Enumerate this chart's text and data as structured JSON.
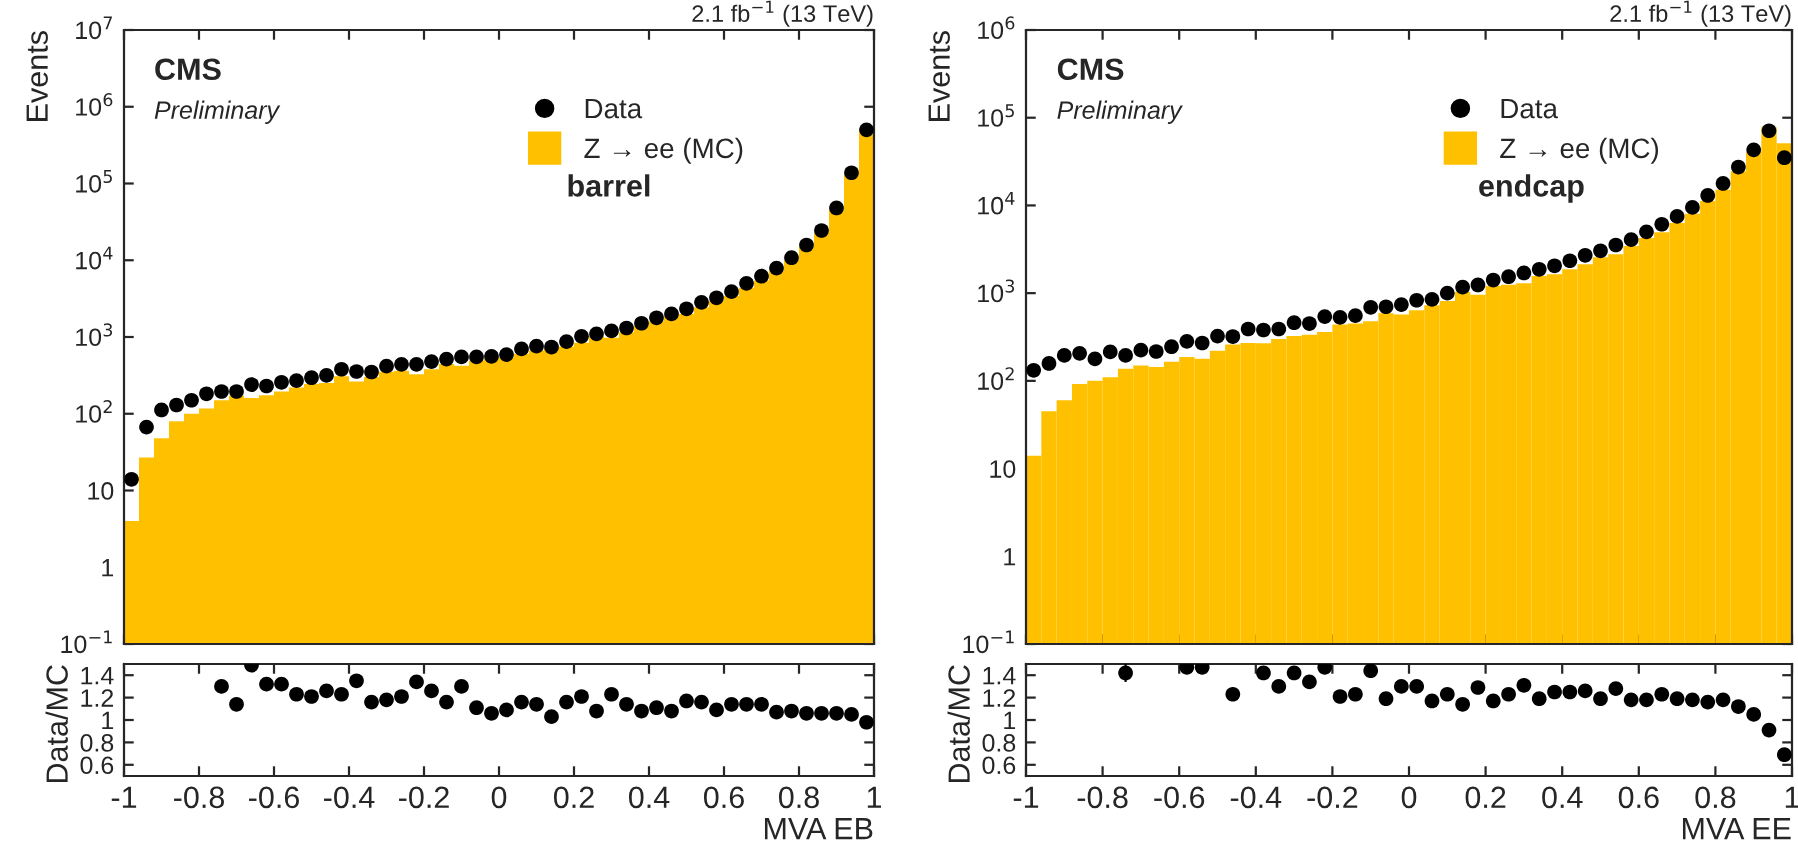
{
  "chart_data": [
    {
      "type": "histogram",
      "ylabel": "Events",
      "log": true,
      "legend": "top right",
      "tick_labels": "y",
      "annotations": [
        "CMS",
        "Preliminary",
        "barrel",
        "2.1 fb$^{−1}$ (13 TeV)"
      ],
      "xlim": [
        -1,
        1
      ],
      "xticks": [
        {
          "value": -1,
          "label": null
        },
        {
          "value": -0.8,
          "label": null
        },
        {
          "value": -0.6,
          "label": null
        },
        {
          "value": -0.4,
          "label": null
        },
        {
          "value": -0.2,
          "label": null
        },
        {
          "value": 0,
          "label": null
        },
        {
          "value": 0.2,
          "label": null
        },
        {
          "value": 0.4,
          "label": null
        },
        {
          "value": 0.6,
          "label": null
        },
        {
          "value": 0.8,
          "label": null
        },
        {
          "value": 1,
          "label": null
        }
      ],
      "ylim": [
        0.1,
        10000000
      ],
      "yticks": [
        {
          "value": 0.1,
          "label": "10$^{−1}$"
        },
        1,
        10,
        {
          "value": 100,
          "label": "10$^{2}$"
        },
        {
          "value": 1000,
          "label": "10$^{3}$"
        },
        {
          "value": 10000,
          "label": "10$^{4}$"
        },
        {
          "value": 100000,
          "label": "10$^{5}$"
        },
        {
          "value": 1000000,
          "label": "10$^{6}$"
        },
        {
          "value": 10000000,
          "label": "10$^{7}$"
        }
      ],
      "bins": [
        -1,
        -0.96,
        -0.92,
        -0.88,
        -0.84,
        -0.8,
        -0.76,
        -0.72,
        -0.68,
        -0.64,
        -0.6,
        -0.56,
        -0.52,
        -0.48,
        -0.44,
        -0.4,
        -0.36,
        -0.32,
        -0.28,
        -0.24,
        -0.2,
        -0.16,
        -0.12,
        -0.08,
        -0.04,
        0,
        0.04,
        0.08,
        0.12,
        0.16,
        0.2,
        0.24,
        0.28,
        0.32,
        0.36,
        0.4,
        0.44,
        0.48,
        0.52,
        0.56,
        0.6,
        0.64,
        0.68,
        0.72,
        0.76,
        0.8,
        0.84,
        0.88,
        0.92,
        0.96,
        1
      ],
      "series": [
        {
          "name": "Z → ee (MC)",
          "type": "histogram",
          "color": "#ffc000",
          "values": [
            4,
            27,
            48,
            80,
            100,
            117,
            150,
            171,
            161,
            174,
            195,
            220,
            244,
            251,
            309,
            263,
            302,
            353,
            364,
            328,
            379,
            444,
            423,
            495,
            528,
            541,
            603,
            667,
            718,
            750,
            843,
            1020,
            976,
            1150,
            1400,
            1600,
            1850,
            1990,
            2440,
            2970,
            3420,
            4390,
            5440,
            7380,
            10000,
            14900,
            23000,
            45300,
            131000,
            510000
          ]
        },
        {
          "name": "Data",
          "type": "scatter",
          "color": "#000000",
          "marker": "circle",
          "x": [
            -0.98,
            -0.94,
            -0.9,
            -0.86,
            -0.82,
            -0.78,
            -0.74,
            -0.7,
            -0.66,
            -0.62,
            -0.58,
            -0.54,
            -0.5,
            -0.46,
            -0.42,
            -0.38,
            -0.34,
            -0.3,
            -0.26,
            -0.22,
            -0.18,
            -0.14,
            -0.1,
            -0.06,
            -0.02,
            0.02,
            0.06,
            0.1,
            0.14,
            0.18,
            0.22,
            0.26,
            0.3,
            0.34,
            0.38,
            0.42,
            0.46,
            0.5,
            0.54,
            0.58,
            0.62,
            0.66,
            0.7,
            0.74,
            0.78,
            0.82,
            0.86,
            0.9,
            0.94,
            0.98
          ],
          "values": [
            14,
            67,
            112,
            130,
            150,
            182,
            195,
            195,
            240,
            230,
            257,
            270,
            295,
            316,
            380,
            355,
            350,
            417,
            440,
            440,
            478,
            515,
            550,
            550,
            560,
            590,
            700,
            760,
            740,
            870,
            1020,
            1100,
            1200,
            1310,
            1510,
            1780,
            2000,
            2330,
            2830,
            3240,
            3900,
            5000,
            6200,
            7900,
            10800,
            15800,
            24400,
            48000,
            138000,
            500000
          ]
        }
      ]
    },
    {
      "type": "scatter",
      "color": "#000000",
      "marker": "circle",
      "xlabel": "MVA EB",
      "ylabel": "Data/MC",
      "xlim": [
        -1,
        1
      ],
      "xticks": [
        -1,
        -0.8,
        -0.6,
        -0.4,
        -0.2,
        0,
        0.2,
        0.4,
        0.6,
        0.8,
        1
      ],
      "ylim": [
        0.5,
        1.5
      ],
      "yticks": [
        0.6,
        0.8,
        1,
        1.2,
        1.4
      ],
      "x": [
        -0.74,
        -0.7,
        -0.66,
        -0.62,
        -0.58,
        -0.54,
        -0.5,
        -0.46,
        -0.42,
        -0.38,
        -0.34,
        -0.3,
        -0.26,
        -0.22,
        -0.18,
        -0.14,
        -0.1,
        -0.06,
        -0.02,
        0.02,
        0.06,
        0.1,
        0.14,
        0.18,
        0.22,
        0.26,
        0.3,
        0.34,
        0.38,
        0.42,
        0.46,
        0.5,
        0.54,
        0.58,
        0.62,
        0.66,
        0.7,
        0.74,
        0.78,
        0.82,
        0.86,
        0.9,
        0.94,
        0.98
      ],
      "values": [
        1.3,
        1.14,
        1.49,
        1.32,
        1.32,
        1.23,
        1.21,
        1.26,
        1.23,
        1.35,
        1.16,
        1.18,
        1.21,
        1.34,
        1.26,
        1.16,
        1.3,
        1.11,
        1.06,
        1.09,
        1.16,
        1.14,
        1.03,
        1.16,
        1.21,
        1.08,
        1.23,
        1.14,
        1.08,
        1.11,
        1.08,
        1.17,
        1.16,
        1.09,
        1.14,
        1.14,
        1.14,
        1.07,
        1.08,
        1.06,
        1.06,
        1.06,
        1.05,
        0.98
      ],
      "errors": [
        0.06,
        0.06,
        0.06,
        0.05,
        0.05,
        0.05,
        0.04,
        0.04,
        0.04,
        0.04,
        0.04,
        0.03,
        0.03,
        0.03,
        0.03,
        0.03,
        0.03,
        0.03,
        0.02,
        0.02,
        0.02,
        0.02,
        0.02,
        0.02,
        0.02,
        0.02,
        0.02,
        0.02,
        0.02,
        0.02,
        0.02,
        0.02,
        0.02,
        0.02,
        0.02,
        0.02,
        0.02,
        0.02,
        0.02,
        0.02,
        0.02,
        0.02,
        0.02,
        0.02
      ]
    },
    {
      "type": "histogram",
      "ylabel": "Events",
      "log": true,
      "legend": "top right",
      "tick_labels": "y",
      "annotations": [
        "CMS",
        "Preliminary",
        "endcap",
        "2.1 fb$^{−1}$ (13 TeV)"
      ],
      "xlim": [
        -1,
        1
      ],
      "xticks": [
        {
          "value": -1,
          "label": null
        },
        {
          "value": -0.8,
          "label": null
        },
        {
          "value": -0.6,
          "label": null
        },
        {
          "value": -0.4,
          "label": null
        },
        {
          "value": -0.2,
          "label": null
        },
        {
          "value": 0,
          "label": null
        },
        {
          "value": 0.2,
          "label": null
        },
        {
          "value": 0.4,
          "label": null
        },
        {
          "value": 0.6,
          "label": null
        },
        {
          "value": 0.8,
          "label": null
        },
        {
          "value": 1,
          "label": null
        }
      ],
      "ylim": [
        0.1,
        1000000
      ],
      "yticks": [
        {
          "value": 0.1,
          "label": "10$^{−1}$"
        },
        1,
        10,
        {
          "value": 100,
          "label": "10$^{2}$"
        },
        {
          "value": 1000,
          "label": "10$^{3}$"
        },
        {
          "value": 10000,
          "label": "10$^{4}$"
        },
        {
          "value": 100000,
          "label": "10$^{5}$"
        },
        {
          "value": 1000000,
          "label": "10$^{6}$"
        }
      ],
      "bins": [
        -1,
        -0.96,
        -0.92,
        -0.88,
        -0.84,
        -0.8,
        -0.76,
        -0.72,
        -0.68,
        -0.64,
        -0.6,
        -0.56,
        -0.52,
        -0.48,
        -0.44,
        -0.4,
        -0.36,
        -0.32,
        -0.28,
        -0.24,
        -0.2,
        -0.16,
        -0.12,
        -0.08,
        -0.04,
        0,
        0.04,
        0.08,
        0.12,
        0.16,
        0.2,
        0.24,
        0.28,
        0.32,
        0.36,
        0.4,
        0.44,
        0.48,
        0.52,
        0.56,
        0.6,
        0.64,
        0.68,
        0.72,
        0.76,
        0.8,
        0.84,
        0.88,
        0.92,
        0.96,
        1
      ],
      "series": [
        {
          "name": "Z → ee (MC)",
          "type": "histogram",
          "color": "#ffc000",
          "values": [
            14,
            45,
            60,
            92,
            100,
            110,
            137,
            150,
            144,
            165,
            187,
            179,
            220,
            260,
            270,
            268,
            300,
            324,
            336,
            360,
            438,
            451,
            479,
            588,
            569,
            638,
            726,
            813,
            1030,
            961,
            1210,
            1250,
            1300,
            1570,
            1640,
            1870,
            2140,
            2560,
            2770,
            3450,
            4240,
            4960,
            6300,
            8050,
            11200,
            15100,
            24500,
            41000,
            78000,
            51000
          ]
        },
        {
          "name": "Data",
          "type": "scatter",
          "color": "#000000",
          "marker": "circle",
          "x": [
            -0.98,
            -0.94,
            -0.9,
            -0.86,
            -0.82,
            -0.78,
            -0.74,
            -0.7,
            -0.66,
            -0.62,
            -0.58,
            -0.54,
            -0.5,
            -0.46,
            -0.42,
            -0.38,
            -0.34,
            -0.3,
            -0.26,
            -0.22,
            -0.18,
            -0.14,
            -0.1,
            -0.06,
            -0.02,
            0.02,
            0.06,
            0.1,
            0.14,
            0.18,
            0.22,
            0.26,
            0.3,
            0.34,
            0.38,
            0.42,
            0.46,
            0.5,
            0.54,
            0.58,
            0.62,
            0.66,
            0.7,
            0.74,
            0.78,
            0.82,
            0.86,
            0.9,
            0.94,
            0.98
          ],
          "values": [
            132,
            158,
            195,
            206,
            178,
            214,
            195,
            224,
            216,
            245,
            282,
            270,
            324,
            320,
            390,
            380,
            390,
            460,
            450,
            540,
            530,
            555,
            690,
            700,
            740,
            830,
            850,
            1000,
            1170,
            1240,
            1410,
            1540,
            1700,
            1870,
            2050,
            2340,
            2700,
            3040,
            3540,
            4070,
            5000,
            6100,
            7500,
            9500,
            13000,
            17800,
            27400,
            43000,
            71000,
            35000
          ]
        }
      ]
    },
    {
      "type": "scatter",
      "color": "#000000",
      "marker": "circle",
      "xlabel": "MVA EE",
      "ylabel": "Data/MC",
      "xlim": [
        -1,
        1
      ],
      "xticks": [
        -1,
        -0.8,
        -0.6,
        -0.4,
        -0.2,
        0,
        0.2,
        0.4,
        0.6,
        0.8,
        1
      ],
      "ylim": [
        0.5,
        1.5
      ],
      "yticks": [
        0.6,
        0.8,
        1,
        1.2,
        1.4
      ],
      "x": [
        -0.74,
        -0.58,
        -0.54,
        -0.46,
        -0.38,
        -0.34,
        -0.3,
        -0.26,
        -0.22,
        -0.18,
        -0.14,
        -0.1,
        -0.06,
        -0.02,
        0.02,
        0.06,
        0.1,
        0.14,
        0.18,
        0.22,
        0.26,
        0.3,
        0.34,
        0.38,
        0.42,
        0.46,
        0.5,
        0.54,
        0.58,
        0.62,
        0.66,
        0.7,
        0.74,
        0.78,
        0.82,
        0.86,
        0.9,
        0.94,
        0.98
      ],
      "values": [
        1.42,
        1.47,
        1.47,
        1.23,
        1.42,
        1.3,
        1.42,
        1.34,
        1.47,
        1.21,
        1.23,
        1.44,
        1.19,
        1.3,
        1.3,
        1.17,
        1.23,
        1.14,
        1.29,
        1.17,
        1.23,
        1.31,
        1.19,
        1.25,
        1.25,
        1.26,
        1.19,
        1.28,
        1.18,
        1.18,
        1.23,
        1.19,
        1.18,
        1.16,
        1.18,
        1.12,
        1.05,
        0.91,
        0.69
      ],
      "errors": [
        0.08,
        0.02,
        0.02,
        0.06,
        0.05,
        0.05,
        0.04,
        0.04,
        0.02,
        0.04,
        0.04,
        0.04,
        0.03,
        0.03,
        0.03,
        0.03,
        0.03,
        0.03,
        0.03,
        0.02,
        0.02,
        0.02,
        0.02,
        0.02,
        0.02,
        0.02,
        0.02,
        0.02,
        0.02,
        0.02,
        0.02,
        0.02,
        0.02,
        0.02,
        0.02,
        0.02,
        0.02,
        0.02,
        0.02
      ]
    }
  ]
}
